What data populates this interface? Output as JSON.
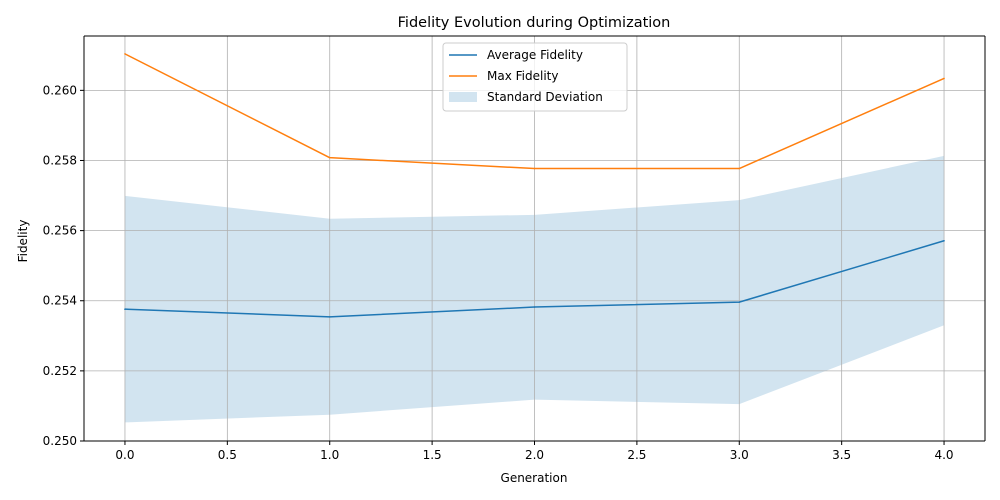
{
  "chart_data": {
    "type": "line",
    "title": "Fidelity Evolution during Optimization",
    "xlabel": "Generation",
    "ylabel": "Fidelity",
    "x": [
      0,
      1,
      2,
      3,
      4
    ],
    "xlim": [
      -0.2,
      4.2
    ],
    "ylim": [
      0.25,
      0.26155
    ],
    "x_ticks": [
      0.0,
      0.5,
      1.0,
      1.5,
      2.0,
      2.5,
      3.0,
      3.5,
      4.0
    ],
    "x_tick_labels": [
      "0.0",
      "0.5",
      "1.0",
      "1.5",
      "2.0",
      "2.5",
      "3.0",
      "3.5",
      "4.0"
    ],
    "y_ticks": [
      0.25,
      0.252,
      0.254,
      0.256,
      0.258,
      0.26
    ],
    "y_tick_labels": [
      "0.250",
      "0.252",
      "0.254",
      "0.256",
      "0.258",
      "0.260"
    ],
    "grid": true,
    "legend_position": "top-center",
    "series": [
      {
        "name": "Average Fidelity",
        "kind": "line",
        "color": "#1f77b4",
        "values": [
          0.25376,
          0.25354,
          0.25382,
          0.25396,
          0.25571
        ]
      },
      {
        "name": "Max Fidelity",
        "kind": "line",
        "color": "#ff7f0e",
        "values": [
          0.26104,
          0.25808,
          0.25777,
          0.25777,
          0.26034
        ]
      },
      {
        "name": "Standard Deviation",
        "kind": "band",
        "color": "#1f77b4",
        "opacity": 0.2,
        "lower": [
          0.25053,
          0.25075,
          0.25118,
          0.25105,
          0.2533
        ],
        "upper": [
          0.25699,
          0.25634,
          0.25645,
          0.25687,
          0.25813
        ]
      }
    ]
  }
}
